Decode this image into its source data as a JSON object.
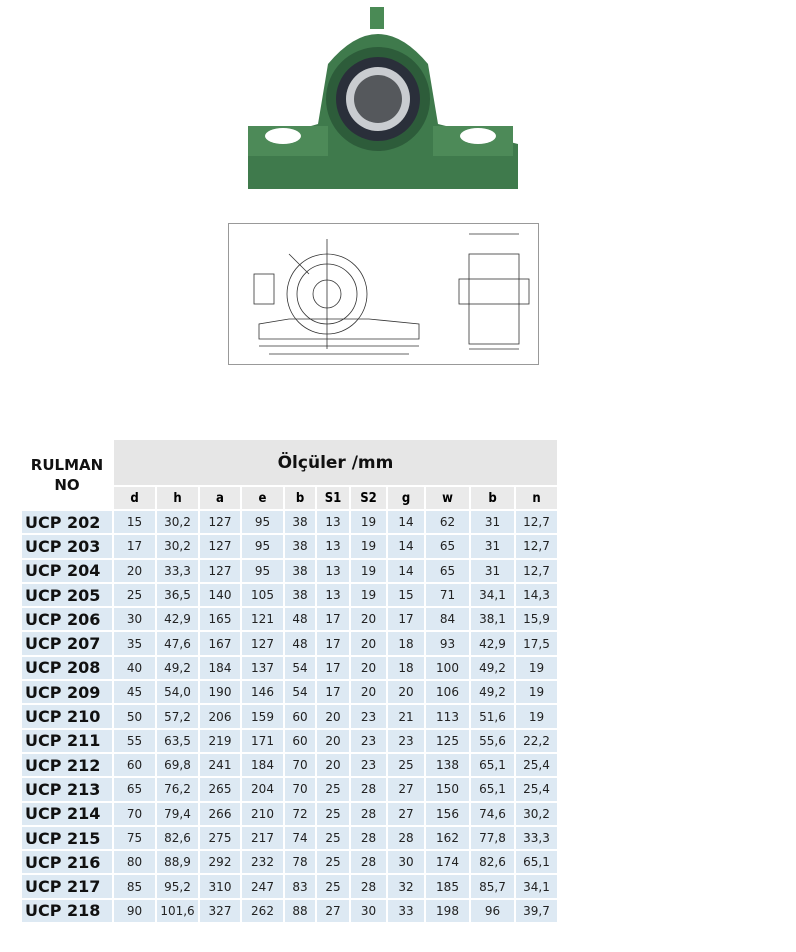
{
  "table": {
    "corner_label_line1": "RULMAN",
    "corner_label_line2": "NO",
    "group_header": "Ölçüler /mm",
    "columns": [
      "d",
      "h",
      "a",
      "e",
      "b",
      "S1",
      "S2",
      "g",
      "w",
      "b",
      "n"
    ],
    "rows": [
      {
        "name": "UCP 202",
        "values": [
          "15",
          "30,2",
          "127",
          "95",
          "38",
          "13",
          "19",
          "14",
          "62",
          "31",
          "12,7"
        ]
      },
      {
        "name": "UCP 203",
        "values": [
          "17",
          "30,2",
          "127",
          "95",
          "38",
          "13",
          "19",
          "14",
          "65",
          "31",
          "12,7"
        ]
      },
      {
        "name": "UCP 204",
        "values": [
          "20",
          "33,3",
          "127",
          "95",
          "38",
          "13",
          "19",
          "14",
          "65",
          "31",
          "12,7"
        ]
      },
      {
        "name": "UCP 205",
        "values": [
          "25",
          "36,5",
          "140",
          "105",
          "38",
          "13",
          "19",
          "15",
          "71",
          "34,1",
          "14,3"
        ]
      },
      {
        "name": "UCP 206",
        "values": [
          "30",
          "42,9",
          "165",
          "121",
          "48",
          "17",
          "20",
          "17",
          "84",
          "38,1",
          "15,9"
        ]
      },
      {
        "name": "UCP 207",
        "values": [
          "35",
          "47,6",
          "167",
          "127",
          "48",
          "17",
          "20",
          "18",
          "93",
          "42,9",
          "17,5"
        ]
      },
      {
        "name": "UCP 208",
        "values": [
          "40",
          "49,2",
          "184",
          "137",
          "54",
          "17",
          "20",
          "18",
          "100",
          "49,2",
          "19"
        ]
      },
      {
        "name": "UCP 209",
        "values": [
          "45",
          "54,0",
          "190",
          "146",
          "54",
          "17",
          "20",
          "20",
          "106",
          "49,2",
          "19"
        ]
      },
      {
        "name": "UCP 210",
        "values": [
          "50",
          "57,2",
          "206",
          "159",
          "60",
          "20",
          "23",
          "21",
          "113",
          "51,6",
          "19"
        ]
      },
      {
        "name": "UCP 211",
        "values": [
          "55",
          "63,5",
          "219",
          "171",
          "60",
          "20",
          "23",
          "23",
          "125",
          "55,6",
          "22,2"
        ]
      },
      {
        "name": "UCP 212",
        "values": [
          "60",
          "69,8",
          "241",
          "184",
          "70",
          "20",
          "23",
          "25",
          "138",
          "65,1",
          "25,4"
        ]
      },
      {
        "name": "UCP 213",
        "values": [
          "65",
          "76,2",
          "265",
          "204",
          "70",
          "25",
          "28",
          "27",
          "150",
          "65,1",
          "25,4"
        ]
      },
      {
        "name": "UCP 214",
        "values": [
          "70",
          "79,4",
          "266",
          "210",
          "72",
          "25",
          "28",
          "27",
          "156",
          "74,6",
          "30,2"
        ]
      },
      {
        "name": "UCP 215",
        "values": [
          "75",
          "82,6",
          "275",
          "217",
          "74",
          "25",
          "28",
          "28",
          "162",
          "77,8",
          "33,3"
        ]
      },
      {
        "name": "UCP 216",
        "values": [
          "80",
          "88,9",
          "292",
          "232",
          "78",
          "25",
          "28",
          "30",
          "174",
          "82,6",
          "65,1"
        ]
      },
      {
        "name": "UCP 217",
        "values": [
          "85",
          "95,2",
          "310",
          "247",
          "83",
          "25",
          "28",
          "32",
          "185",
          "85,7",
          "34,1"
        ]
      },
      {
        "name": "UCP 218",
        "values": [
          "90",
          "101,6",
          "327",
          "262",
          "88",
          "27",
          "30",
          "33",
          "198",
          "96",
          "39,7"
        ]
      }
    ]
  },
  "colors": {
    "header_bg": "#e6e6e6",
    "row_bg": "#dde9f3",
    "housing_green": "#3f7a4c"
  }
}
